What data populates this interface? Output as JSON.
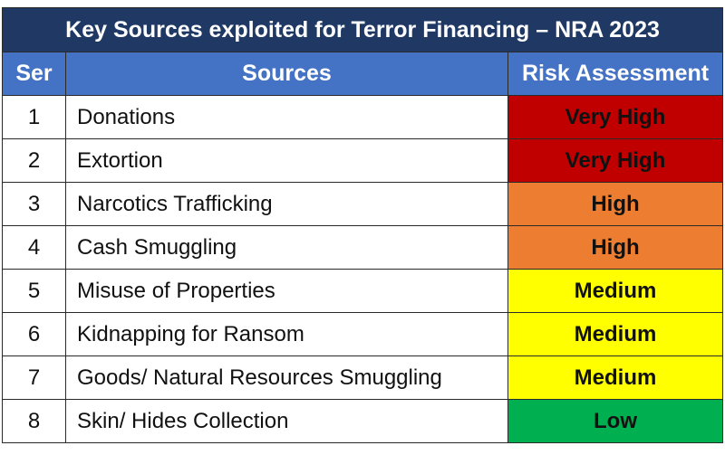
{
  "title": "Key Sources exploited for Terror Financing – NRA 2023",
  "headers": {
    "ser": "Ser",
    "sources": "Sources",
    "risk": "Risk Assessment"
  },
  "colors": {
    "title_bg": "#1f3864",
    "header_bg": "#4472c4",
    "Very High": "#c00000",
    "High": "#ed7d31",
    "Medium": "#ffff00",
    "Low": "#00b050"
  },
  "rows": [
    {
      "ser": "1",
      "source": "Donations",
      "risk": "Very High"
    },
    {
      "ser": "2",
      "source": "Extortion",
      "risk": "Very High"
    },
    {
      "ser": "3",
      "source": "Narcotics Trafficking",
      "risk": "High"
    },
    {
      "ser": "4",
      "source": "Cash Smuggling",
      "risk": "High"
    },
    {
      "ser": "5",
      "source": "Misuse of Properties",
      "risk": "Medium"
    },
    {
      "ser": "6",
      "source": "Kidnapping for Ransom",
      "risk": "Medium"
    },
    {
      "ser": "7",
      "source": "Goods/ Natural Resources Smuggling",
      "risk": "Medium"
    },
    {
      "ser": "8",
      "source": "Skin/ Hides Collection",
      "risk": "Low"
    }
  ]
}
